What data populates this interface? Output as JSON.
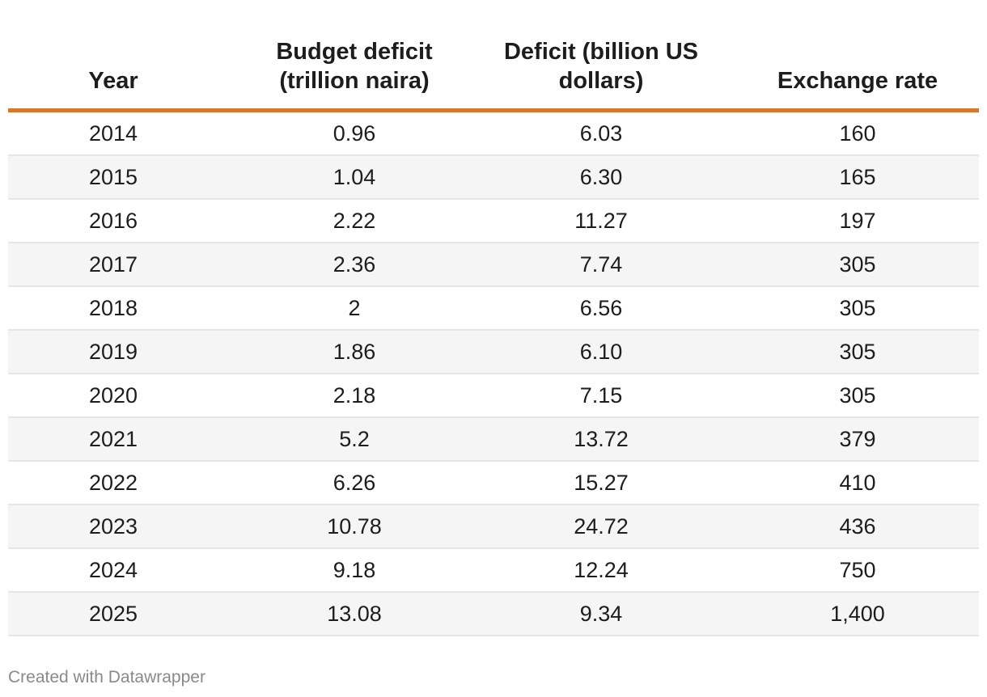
{
  "chart_data": {
    "type": "table",
    "columns": [
      "Year",
      "Budget deficit (trillion naira)",
      "Deficit (billion US dollars)",
      "Exchange rate"
    ],
    "header_lines": [
      [
        "Year"
      ],
      [
        "Budget deficit",
        "(trillion naira)"
      ],
      [
        "Deficit (billion US",
        "dollars)"
      ],
      [
        "Exchange rate"
      ]
    ],
    "rows": [
      [
        "2014",
        "0.96",
        "6.03",
        "160"
      ],
      [
        "2015",
        "1.04",
        "6.30",
        "165"
      ],
      [
        "2016",
        "2.22",
        "11.27",
        "197"
      ],
      [
        "2017",
        "2.36",
        "7.74",
        "305"
      ],
      [
        "2018",
        "2",
        "6.56",
        "305"
      ],
      [
        "2019",
        "1.86",
        "6.10",
        "305"
      ],
      [
        "2020",
        "2.18",
        "7.15",
        "305"
      ],
      [
        "2021",
        "5.2",
        "13.72",
        "379"
      ],
      [
        "2022",
        "6.26",
        "15.27",
        "410"
      ],
      [
        "2023",
        "10.78",
        "24.72",
        "436"
      ],
      [
        "2024",
        "9.18",
        "12.24",
        "750"
      ],
      [
        "2025",
        "13.08",
        "9.34",
        "1,400"
      ]
    ],
    "credit": "Created with Datawrapper"
  },
  "colors": {
    "header_rule": "#d9782b",
    "alt_row": "#f5f5f5",
    "row_divider": "#e6e6e6",
    "text": "#1d1d1d",
    "credit_text": "#8a8a8a"
  }
}
